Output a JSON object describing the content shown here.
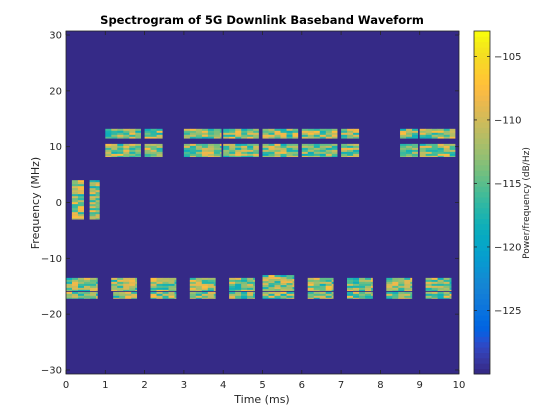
{
  "chart_data": {
    "type": "heatmap",
    "title": "Spectrogram of 5G Downlink Baseband Waveform",
    "xlabel": "Time (ms)",
    "ylabel": "Frequency (MHz)",
    "xlim": [
      0,
      10
    ],
    "ylim": [
      -30.72,
      30.72
    ],
    "xticks": [
      0,
      1,
      2,
      3,
      4,
      5,
      6,
      7,
      8,
      9,
      10
    ],
    "yticks": [
      -30,
      -20,
      -10,
      0,
      10,
      20,
      30
    ],
    "background_level_db": -130,
    "colorbar": {
      "label": "Power/frequency (dB/Hz)",
      "range": [
        -130,
        -103
      ],
      "ticks": [
        -125,
        -120,
        -115,
        -110,
        -105
      ],
      "colormap": "parula"
    },
    "grid": false,
    "bursts": [
      {
        "t": [
          0.15,
          0.45
        ],
        "f": [
          -3,
          4
        ]
      },
      {
        "t": [
          0.6,
          0.85
        ],
        "f": [
          -3,
          4
        ]
      },
      {
        "t": [
          1.0,
          1.9
        ],
        "f": [
          11.5,
          13.2
        ]
      },
      {
        "t": [
          1.0,
          1.9
        ],
        "f": [
          8.2,
          10.5
        ]
      },
      {
        "t": [
          2.0,
          2.45
        ],
        "f": [
          11.5,
          13.2
        ]
      },
      {
        "t": [
          2.0,
          2.45
        ],
        "f": [
          8.2,
          10.5
        ]
      },
      {
        "t": [
          3.0,
          3.95
        ],
        "f": [
          11.5,
          13.2
        ]
      },
      {
        "t": [
          3.0,
          3.95
        ],
        "f": [
          8.2,
          10.5
        ]
      },
      {
        "t": [
          4.0,
          4.9
        ],
        "f": [
          11.5,
          13.2
        ]
      },
      {
        "t": [
          4.0,
          4.9
        ],
        "f": [
          8.2,
          10.5
        ]
      },
      {
        "t": [
          5.0,
          5.9
        ],
        "f": [
          11.5,
          13.2
        ]
      },
      {
        "t": [
          5.0,
          5.9
        ],
        "f": [
          8.2,
          10.5
        ]
      },
      {
        "t": [
          6.0,
          6.9
        ],
        "f": [
          11.5,
          13.2
        ]
      },
      {
        "t": [
          6.0,
          6.9
        ],
        "f": [
          8.2,
          10.5
        ]
      },
      {
        "t": [
          7.0,
          7.45
        ],
        "f": [
          11.5,
          13.2
        ]
      },
      {
        "t": [
          7.0,
          7.45
        ],
        "f": [
          8.2,
          10.5
        ]
      },
      {
        "t": [
          8.5,
          8.95
        ],
        "f": [
          11.5,
          13.2
        ]
      },
      {
        "t": [
          8.5,
          8.95
        ],
        "f": [
          8.2,
          10.5
        ]
      },
      {
        "t": [
          9.0,
          9.9
        ],
        "f": [
          11.5,
          13.2
        ]
      },
      {
        "t": [
          9.0,
          9.9
        ],
        "f": [
          8.2,
          10.5
        ]
      },
      {
        "t": [
          0.0,
          0.8
        ],
        "f": [
          -15.8,
          -13.5
        ]
      },
      {
        "t": [
          0.0,
          0.8
        ],
        "f": [
          -17.2,
          -16.0
        ]
      },
      {
        "t": [
          1.15,
          1.8
        ],
        "f": [
          -15.8,
          -13.5
        ]
      },
      {
        "t": [
          1.2,
          1.8
        ],
        "f": [
          -17.2,
          -16.0
        ]
      },
      {
        "t": [
          2.15,
          2.8
        ],
        "f": [
          -15.8,
          -13.5
        ]
      },
      {
        "t": [
          2.15,
          2.8
        ],
        "f": [
          -17.2,
          -16.0
        ]
      },
      {
        "t": [
          3.15,
          3.8
        ],
        "f": [
          -15.8,
          -13.5
        ]
      },
      {
        "t": [
          3.15,
          3.8
        ],
        "f": [
          -17.2,
          -16.0
        ]
      },
      {
        "t": [
          4.15,
          4.8
        ],
        "f": [
          -15.8,
          -13.5
        ]
      },
      {
        "t": [
          4.15,
          4.8
        ],
        "f": [
          -17.2,
          -16.0
        ]
      },
      {
        "t": [
          5.0,
          5.8
        ],
        "f": [
          -15.8,
          -13.0
        ]
      },
      {
        "t": [
          5.0,
          5.8
        ],
        "f": [
          -17.2,
          -16.0
        ]
      },
      {
        "t": [
          6.15,
          6.8
        ],
        "f": [
          -15.8,
          -13.5
        ]
      },
      {
        "t": [
          6.15,
          6.8
        ],
        "f": [
          -17.2,
          -16.0
        ]
      },
      {
        "t": [
          7.15,
          7.8
        ],
        "f": [
          -15.8,
          -13.5
        ]
      },
      {
        "t": [
          7.15,
          7.8
        ],
        "f": [
          -17.2,
          -16.0
        ]
      },
      {
        "t": [
          8.15,
          8.8
        ],
        "f": [
          -15.8,
          -13.5
        ]
      },
      {
        "t": [
          8.15,
          8.8
        ],
        "f": [
          -17.2,
          -16.0
        ]
      },
      {
        "t": [
          9.15,
          9.8
        ],
        "f": [
          -15.8,
          -13.5
        ]
      },
      {
        "t": [
          9.15,
          9.8
        ],
        "f": [
          -17.2,
          -16.0
        ]
      }
    ]
  }
}
